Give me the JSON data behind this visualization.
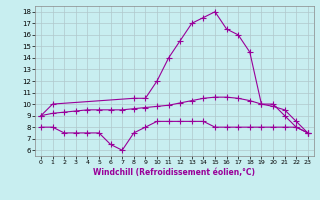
{
  "line1_x": [
    0,
    1,
    8,
    9,
    10,
    11,
    12,
    13,
    14,
    15,
    16,
    17,
    18,
    19,
    20,
    21,
    22,
    23
  ],
  "line1_y": [
    9.0,
    10.0,
    10.5,
    10.5,
    12.0,
    14.0,
    15.5,
    17.0,
    17.5,
    18.0,
    16.5,
    16.0,
    14.5,
    10.0,
    10.0,
    9.0,
    8.0,
    7.5
  ],
  "line2_x": [
    0,
    1,
    2,
    3,
    4,
    5,
    6,
    7,
    8,
    9,
    10,
    11,
    12,
    13,
    14,
    15,
    16,
    17,
    18,
    19,
    20,
    21,
    22,
    23
  ],
  "line2_y": [
    9.0,
    9.2,
    9.3,
    9.4,
    9.5,
    9.5,
    9.5,
    9.5,
    9.6,
    9.7,
    9.8,
    9.9,
    10.1,
    10.3,
    10.5,
    10.6,
    10.6,
    10.5,
    10.3,
    10.0,
    9.8,
    9.5,
    8.5,
    7.5
  ],
  "line3_x": [
    0,
    1,
    2,
    3,
    4,
    5,
    6,
    7,
    8,
    9,
    10,
    11,
    12,
    13,
    14,
    15,
    16,
    17,
    18,
    19,
    20,
    21,
    22,
    23
  ],
  "line3_y": [
    8.0,
    8.0,
    7.5,
    7.5,
    7.5,
    7.5,
    6.5,
    6.0,
    7.5,
    8.0,
    8.5,
    8.5,
    8.5,
    8.5,
    8.5,
    8.0,
    8.0,
    8.0,
    8.0,
    8.0,
    8.0,
    8.0,
    8.0,
    7.5
  ],
  "line_color": "#990099",
  "bg_color": "#c8eef0",
  "grid_color": "#b0c8cc",
  "xlabel": "Windchill (Refroidissement éolien,°C)",
  "xlim": [
    -0.5,
    23.5
  ],
  "ylim": [
    5.5,
    18.5
  ],
  "yticks": [
    6,
    7,
    8,
    9,
    10,
    11,
    12,
    13,
    14,
    15,
    16,
    17,
    18
  ],
  "xticks": [
    0,
    1,
    2,
    3,
    4,
    5,
    6,
    7,
    8,
    9,
    10,
    11,
    12,
    13,
    14,
    15,
    16,
    17,
    18,
    19,
    20,
    21,
    22,
    23
  ]
}
